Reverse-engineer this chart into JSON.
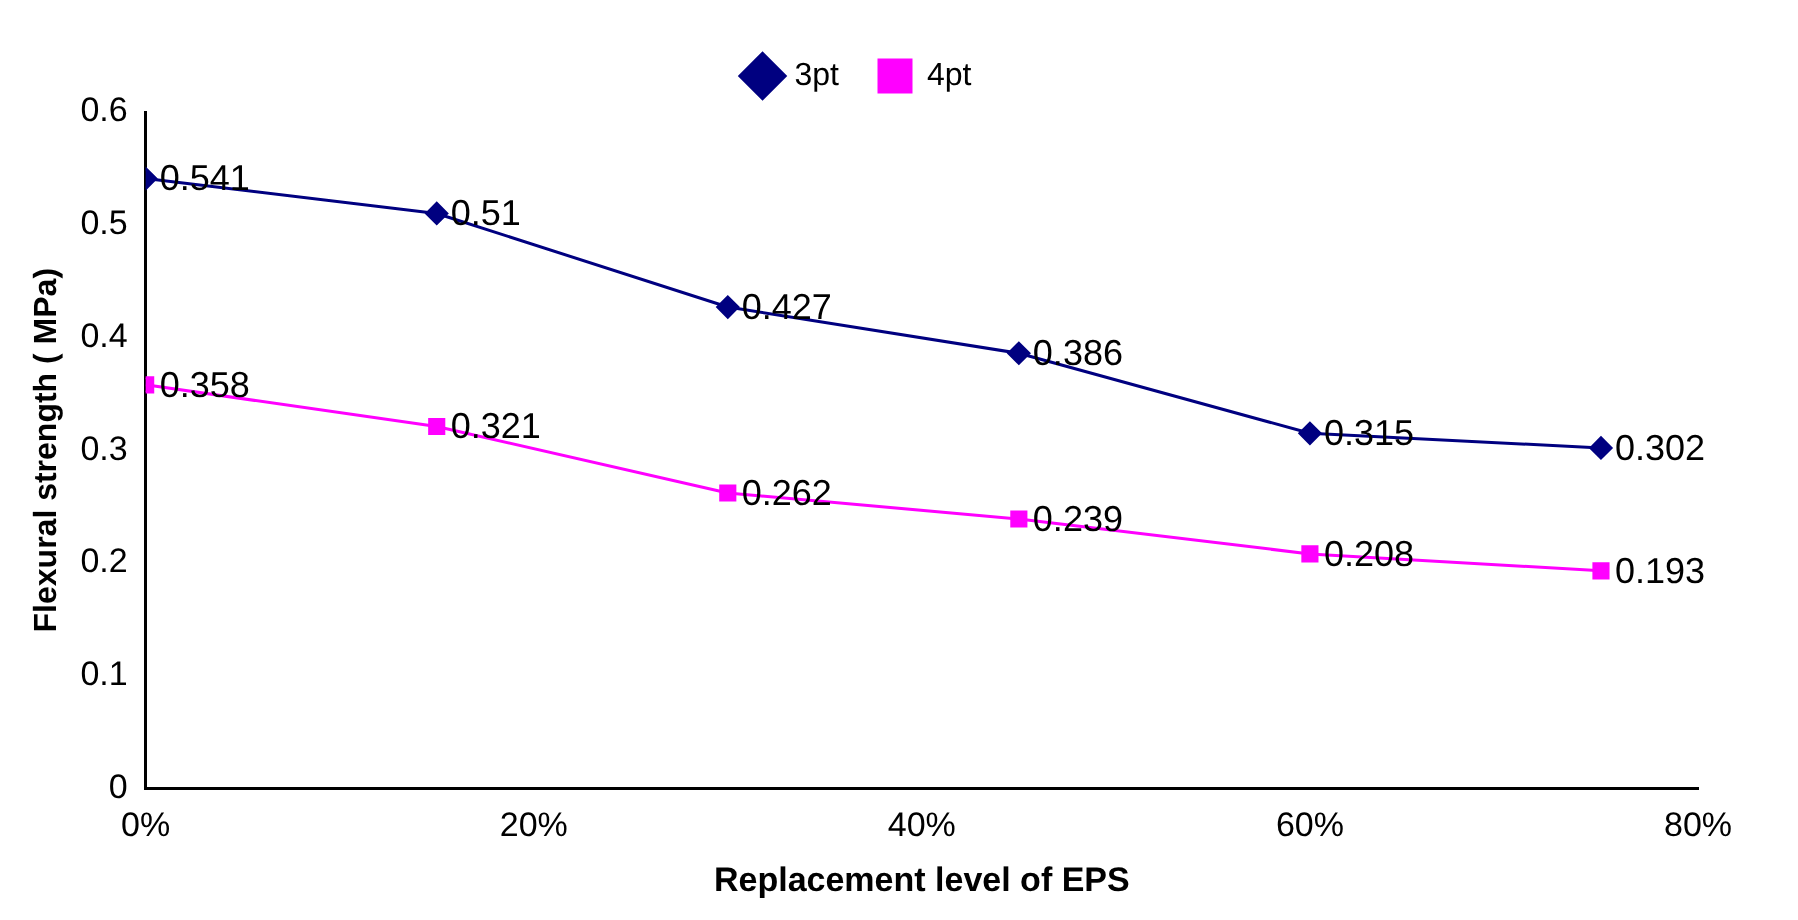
{
  "chart_data": {
    "type": "line",
    "xlabel": "Replacement level of EPS",
    "ylabel": "Flexural strength ( MPa)",
    "x": [
      0,
      15,
      30,
      45,
      60,
      75
    ],
    "xlim": [
      0,
      80
    ],
    "xticks": [
      {
        "value": 0,
        "label": "0%"
      },
      {
        "value": 20,
        "label": "20%"
      },
      {
        "value": 40,
        "label": "40%"
      },
      {
        "value": 60,
        "label": "60%"
      },
      {
        "value": 80,
        "label": "80%"
      }
    ],
    "ylim": [
      0,
      0.6
    ],
    "yticks": [
      0,
      0.1,
      0.2,
      0.3,
      0.4,
      0.5,
      0.6
    ],
    "grid": false,
    "legend": "top",
    "data_labels": true,
    "series": [
      {
        "name": "3pt",
        "color": "#000080",
        "marker": "diamond",
        "values": [
          0.541,
          0.51,
          0.427,
          0.386,
          0.315,
          0.302
        ]
      },
      {
        "name": "4pt",
        "color": "#ff00ff",
        "marker": "square",
        "values": [
          0.358,
          0.321,
          0.262,
          0.239,
          0.208,
          0.193
        ]
      }
    ]
  }
}
